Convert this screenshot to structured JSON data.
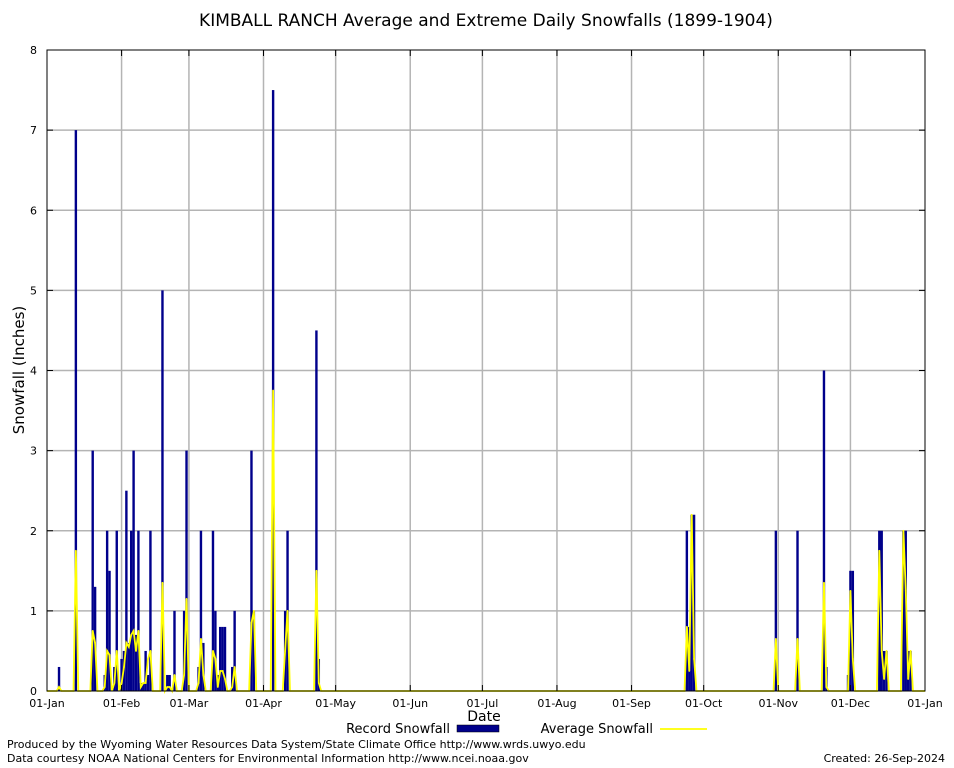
{
  "chart_data": {
    "type": "bar",
    "title": "KIMBALL RANCH Average and Extreme Daily Snowfalls (1899-1904)",
    "xlabel": "Date",
    "ylabel": "Snowfall (Inches)",
    "ylim": [
      0,
      8
    ],
    "yticks": [
      "0",
      "1",
      "2",
      "3",
      "4",
      "5",
      "6",
      "7",
      "8"
    ],
    "xlim_day_of_year": [
      1,
      366
    ],
    "xticks": [
      {
        "label": "01-Jan",
        "day": 1
      },
      {
        "label": "01-Feb",
        "day": 32
      },
      {
        "label": "01-Mar",
        "day": 60
      },
      {
        "label": "01-Apr",
        "day": 91
      },
      {
        "label": "01-May",
        "day": 121
      },
      {
        "label": "01-Jun",
        "day": 152
      },
      {
        "label": "01-Jul",
        "day": 182
      },
      {
        "label": "01-Aug",
        "day": 213
      },
      {
        "label": "01-Sep",
        "day": 244
      },
      {
        "label": "01-Oct",
        "day": 274
      },
      {
        "label": "01-Nov",
        "day": 305
      },
      {
        "label": "01-Dec",
        "day": 335
      },
      {
        "label": "01-Jan",
        "day": 366
      }
    ],
    "grid": true,
    "legend_position": "bottom",
    "legend": [
      {
        "label": "Record Snowfall",
        "color": "#00008b"
      },
      {
        "label": "Average Snowfall",
        "color": "#ffff00"
      }
    ],
    "series": [
      {
        "name": "Record Snowfall",
        "color": "#00008b",
        "points": [
          {
            "date": "06-Jan",
            "day": 6,
            "value": 0.3
          },
          {
            "date": "13-Jan",
            "day": 13,
            "value": 7.0
          },
          {
            "date": "20-Jan",
            "day": 20,
            "value": 3.0
          },
          {
            "date": "21-Jan",
            "day": 21,
            "value": 1.3
          },
          {
            "date": "25-Jan",
            "day": 25,
            "value": 0.2
          },
          {
            "date": "26-Jan",
            "day": 26,
            "value": 2.0
          },
          {
            "date": "27-Jan",
            "day": 27,
            "value": 1.5
          },
          {
            "date": "29-Jan",
            "day": 29,
            "value": 0.3
          },
          {
            "date": "30-Jan",
            "day": 30,
            "value": 2.0
          },
          {
            "date": "01-Feb",
            "day": 32,
            "value": 0.4
          },
          {
            "date": "02-Feb",
            "day": 33,
            "value": 0.5
          },
          {
            "date": "03-Feb",
            "day": 34,
            "value": 2.5
          },
          {
            "date": "04-Feb",
            "day": 35,
            "value": 0.6
          },
          {
            "date": "05-Feb",
            "day": 36,
            "value": 2.0
          },
          {
            "date": "06-Feb",
            "day": 37,
            "value": 3.0
          },
          {
            "date": "07-Feb",
            "day": 38,
            "value": 0.7
          },
          {
            "date": "08-Feb",
            "day": 39,
            "value": 2.0
          },
          {
            "date": "09-Feb",
            "day": 40,
            "value": 0.1
          },
          {
            "date": "10-Feb",
            "day": 41,
            "value": 0.1
          },
          {
            "date": "11-Feb",
            "day": 42,
            "value": 0.5
          },
          {
            "date": "12-Feb",
            "day": 43,
            "value": 0.2
          },
          {
            "date": "13-Feb",
            "day": 44,
            "value": 2.0
          },
          {
            "date": "18-Feb",
            "day": 49,
            "value": 5.0
          },
          {
            "date": "20-Feb",
            "day": 51,
            "value": 0.2
          },
          {
            "date": "21-Feb",
            "day": 52,
            "value": 0.2
          },
          {
            "date": "23-Feb",
            "day": 54,
            "value": 1.0
          },
          {
            "date": "27-Feb",
            "day": 58,
            "value": 1.0
          },
          {
            "date": "28-Feb",
            "day": 59,
            "value": 3.0
          },
          {
            "date": "05-Mar",
            "day": 64,
            "value": 0.3
          },
          {
            "date": "06-Mar",
            "day": 65,
            "value": 2.0
          },
          {
            "date": "07-Mar",
            "day": 66,
            "value": 0.6
          },
          {
            "date": "11-Mar",
            "day": 70,
            "value": 2.0
          },
          {
            "date": "12-Mar",
            "day": 71,
            "value": 1.0
          },
          {
            "date": "13-Mar",
            "day": 72,
            "value": 0.2
          },
          {
            "date": "14-Mar",
            "day": 73,
            "value": 0.8
          },
          {
            "date": "15-Mar",
            "day": 74,
            "value": 0.8
          },
          {
            "date": "16-Mar",
            "day": 75,
            "value": 0.8
          },
          {
            "date": "19-Mar",
            "day": 78,
            "value": 0.3
          },
          {
            "date": "20-Mar",
            "day": 79,
            "value": 1.0
          },
          {
            "date": "27-Mar",
            "day": 86,
            "value": 3.0
          },
          {
            "date": "28-Mar",
            "day": 87,
            "value": 1.0
          },
          {
            "date": "05-Apr",
            "day": 95,
            "value": 7.5
          },
          {
            "date": "10-Apr",
            "day": 100,
            "value": 1.0
          },
          {
            "date": "11-Apr",
            "day": 101,
            "value": 2.0
          },
          {
            "date": "23-Apr",
            "day": 113,
            "value": 4.5
          },
          {
            "date": "24-Apr",
            "day": 114,
            "value": 0.4
          },
          {
            "date": "24-Sep",
            "day": 267,
            "value": 2.0
          },
          {
            "date": "25-Sep",
            "day": 268,
            "value": 0.8
          },
          {
            "date": "26-Sep",
            "day": 269,
            "value": 2.2
          },
          {
            "date": "27-Sep",
            "day": 270,
            "value": 2.2
          },
          {
            "date": "31-Oct",
            "day": 304,
            "value": 2.0
          },
          {
            "date": "09-Nov",
            "day": 313,
            "value": 2.0
          },
          {
            "date": "20-Nov",
            "day": 324,
            "value": 4.0
          },
          {
            "date": "21-Nov",
            "day": 325,
            "value": 0.3
          },
          {
            "date": "30-Nov",
            "day": 334,
            "value": 0.2
          },
          {
            "date": "01-Dec",
            "day": 335,
            "value": 1.5
          },
          {
            "date": "02-Dec",
            "day": 336,
            "value": 1.5
          },
          {
            "date": "13-Dec",
            "day": 347,
            "value": 2.0
          },
          {
            "date": "14-Dec",
            "day": 348,
            "value": 2.0
          },
          {
            "date": "15-Dec",
            "day": 349,
            "value": 0.5
          },
          {
            "date": "16-Dec",
            "day": 350,
            "value": 0.5
          },
          {
            "date": "23-Dec",
            "day": 357,
            "value": 2.0
          },
          {
            "date": "24-Dec",
            "day": 358,
            "value": 2.0
          },
          {
            "date": "25-Dec",
            "day": 359,
            "value": 0.5
          },
          {
            "date": "26-Dec",
            "day": 360,
            "value": 0.5
          }
        ]
      },
      {
        "name": "Average Snowfall",
        "color": "#ffff00",
        "points": [
          {
            "date": "05-Jan",
            "day": 5,
            "value": 0.0
          },
          {
            "date": "06-Jan",
            "day": 6,
            "value": 0.05
          },
          {
            "date": "07-Jan",
            "day": 7,
            "value": 0.0
          },
          {
            "date": "12-Jan",
            "day": 12,
            "value": 0.0
          },
          {
            "date": "13-Jan",
            "day": 13,
            "value": 1.75
          },
          {
            "date": "14-Jan",
            "day": 14,
            "value": 0.0
          },
          {
            "date": "19-Jan",
            "day": 19,
            "value": 0.0
          },
          {
            "date": "20-Jan",
            "day": 20,
            "value": 0.75
          },
          {
            "date": "21-Jan",
            "day": 21,
            "value": 0.6
          },
          {
            "date": "22-Jan",
            "day": 22,
            "value": 0.0
          },
          {
            "date": "24-Jan",
            "day": 24,
            "value": 0.0
          },
          {
            "date": "25-Jan",
            "day": 25,
            "value": 0.05
          },
          {
            "date": "26-Jan",
            "day": 26,
            "value": 0.5
          },
          {
            "date": "27-Jan",
            "day": 27,
            "value": 0.45
          },
          {
            "date": "28-Jan",
            "day": 28,
            "value": 0.0
          },
          {
            "date": "29-Jan",
            "day": 29,
            "value": 0.1
          },
          {
            "date": "30-Jan",
            "day": 30,
            "value": 0.5
          },
          {
            "date": "31-Jan",
            "day": 31,
            "value": 0.0
          },
          {
            "date": "01-Feb",
            "day": 32,
            "value": 0.1
          },
          {
            "date": "02-Feb",
            "day": 33,
            "value": 0.3
          },
          {
            "date": "03-Feb",
            "day": 34,
            "value": 0.6
          },
          {
            "date": "04-Feb",
            "day": 35,
            "value": 0.55
          },
          {
            "date": "05-Feb",
            "day": 36,
            "value": 0.7
          },
          {
            "date": "06-Feb",
            "day": 37,
            "value": 0.75
          },
          {
            "date": "07-Feb",
            "day": 38,
            "value": 0.5
          },
          {
            "date": "08-Feb",
            "day": 39,
            "value": 0.75
          },
          {
            "date": "09-Feb",
            "day": 40,
            "value": 0.05
          },
          {
            "date": "10-Feb",
            "day": 41,
            "value": 0.1
          },
          {
            "date": "11-Feb",
            "day": 42,
            "value": 0.1
          },
          {
            "date": "12-Feb",
            "day": 43,
            "value": 0.4
          },
          {
            "date": "13-Feb",
            "day": 44,
            "value": 0.5
          },
          {
            "date": "14-Feb",
            "day": 45,
            "value": 0.0
          },
          {
            "date": "17-Feb",
            "day": 48,
            "value": 0.0
          },
          {
            "date": "18-Feb",
            "day": 49,
            "value": 1.35
          },
          {
            "date": "19-Feb",
            "day": 50,
            "value": 0.0
          },
          {
            "date": "20-Feb",
            "day": 51,
            "value": 0.05
          },
          {
            "date": "21-Feb",
            "day": 52,
            "value": 0.05
          },
          {
            "date": "22-Feb",
            "day": 53,
            "value": 0.0
          },
          {
            "date": "23-Feb",
            "day": 54,
            "value": 0.2
          },
          {
            "date": "24-Feb",
            "day": 55,
            "value": 0.0
          },
          {
            "date": "26-Feb",
            "day": 57,
            "value": 0.0
          },
          {
            "date": "27-Feb",
            "day": 58,
            "value": 0.2
          },
          {
            "date": "28-Feb",
            "day": 59,
            "value": 1.15
          },
          {
            "date": "01-Mar",
            "day": 60,
            "value": 0.0
          },
          {
            "date": "04-Mar",
            "day": 63,
            "value": 0.0
          },
          {
            "date": "05-Mar",
            "day": 64,
            "value": 0.1
          },
          {
            "date": "06-Mar",
            "day": 65,
            "value": 0.65
          },
          {
            "date": "07-Mar",
            "day": 66,
            "value": 0.2
          },
          {
            "date": "08-Mar",
            "day": 67,
            "value": 0.0
          },
          {
            "date": "10-Mar",
            "day": 69,
            "value": 0.0
          },
          {
            "date": "11-Mar",
            "day": 70,
            "value": 0.5
          },
          {
            "date": "12-Mar",
            "day": 71,
            "value": 0.4
          },
          {
            "date": "13-Mar",
            "day": 72,
            "value": 0.05
          },
          {
            "date": "14-Mar",
            "day": 73,
            "value": 0.25
          },
          {
            "date": "15-Mar",
            "day": 74,
            "value": 0.25
          },
          {
            "date": "16-Mar",
            "day": 75,
            "value": 0.15
          },
          {
            "date": "17-Mar",
            "day": 76,
            "value": 0.0
          },
          {
            "date": "18-Mar",
            "day": 77,
            "value": 0.0
          },
          {
            "date": "19-Mar",
            "day": 78,
            "value": 0.05
          },
          {
            "date": "20-Mar",
            "day": 79,
            "value": 0.3
          },
          {
            "date": "21-Mar",
            "day": 80,
            "value": 0.0
          },
          {
            "date": "26-Mar",
            "day": 85,
            "value": 0.0
          },
          {
            "date": "27-Mar",
            "day": 86,
            "value": 0.85
          },
          {
            "date": "28-Mar",
            "day": 87,
            "value": 1.0
          },
          {
            "date": "29-Mar",
            "day": 88,
            "value": 0.0
          },
          {
            "date": "04-Apr",
            "day": 94,
            "value": 0.0
          },
          {
            "date": "05-Apr",
            "day": 95,
            "value": 3.75
          },
          {
            "date": "06-Apr",
            "day": 96,
            "value": 0.0
          },
          {
            "date": "09-Apr",
            "day": 99,
            "value": 0.0
          },
          {
            "date": "10-Apr",
            "day": 100,
            "value": 0.5
          },
          {
            "date": "11-Apr",
            "day": 101,
            "value": 1.0
          },
          {
            "date": "12-Apr",
            "day": 102,
            "value": 0.0
          },
          {
            "date": "22-Apr",
            "day": 112,
            "value": 0.0
          },
          {
            "date": "23-Apr",
            "day": 113,
            "value": 1.5
          },
          {
            "date": "24-Apr",
            "day": 114,
            "value": 0.1
          },
          {
            "date": "25-Apr",
            "day": 115,
            "value": 0.0
          },
          {
            "date": "23-Sep",
            "day": 266,
            "value": 0.0
          },
          {
            "date": "24-Sep",
            "day": 267,
            "value": 0.8
          },
          {
            "date": "25-Sep",
            "day": 268,
            "value": 0.25
          },
          {
            "date": "26-Sep",
            "day": 269,
            "value": 2.2
          },
          {
            "date": "27-Sep",
            "day": 270,
            "value": 0.4
          },
          {
            "date": "28-Sep",
            "day": 271,
            "value": 0.0
          },
          {
            "date": "30-Oct",
            "day": 303,
            "value": 0.0
          },
          {
            "date": "31-Oct",
            "day": 304,
            "value": 0.65
          },
          {
            "date": "01-Nov",
            "day": 305,
            "value": 0.0
          },
          {
            "date": "08-Nov",
            "day": 312,
            "value": 0.0
          },
          {
            "date": "09-Nov",
            "day": 313,
            "value": 0.65
          },
          {
            "date": "10-Nov",
            "day": 314,
            "value": 0.0
          },
          {
            "date": "19-Nov",
            "day": 323,
            "value": 0.0
          },
          {
            "date": "20-Nov",
            "day": 324,
            "value": 1.35
          },
          {
            "date": "21-Nov",
            "day": 325,
            "value": 0.05
          },
          {
            "date": "22-Nov",
            "day": 326,
            "value": 0.0
          },
          {
            "date": "30-Nov",
            "day": 334,
            "value": 0.0
          },
          {
            "date": "01-Dec",
            "day": 335,
            "value": 1.25
          },
          {
            "date": "02-Dec",
            "day": 336,
            "value": 0.4
          },
          {
            "date": "03-Dec",
            "day": 337,
            "value": 0.0
          },
          {
            "date": "12-Dec",
            "day": 346,
            "value": 0.0
          },
          {
            "date": "13-Dec",
            "day": 347,
            "value": 1.75
          },
          {
            "date": "14-Dec",
            "day": 348,
            "value": 0.5
          },
          {
            "date": "15-Dec",
            "day": 349,
            "value": 0.15
          },
          {
            "date": "16-Dec",
            "day": 350,
            "value": 0.5
          },
          {
            "date": "17-Dec",
            "day": 351,
            "value": 0.0
          },
          {
            "date": "22-Dec",
            "day": 356,
            "value": 0.0
          },
          {
            "date": "23-Dec",
            "day": 357,
            "value": 2.0
          },
          {
            "date": "24-Dec",
            "day": 358,
            "value": 1.25
          },
          {
            "date": "25-Dec",
            "day": 359,
            "value": 0.15
          },
          {
            "date": "26-Dec",
            "day": 360,
            "value": 0.5
          },
          {
            "date": "27-Dec",
            "day": 361,
            "value": 0.0
          }
        ]
      }
    ]
  },
  "footer": {
    "produced_by": "Produced by the Wyoming Water Resources Data System/State Climate Office http://www.wrds.uwyo.edu",
    "data_courtesy": "Data courtesy NOAA National Centers for Environmental Information http://www.ncei.noaa.gov",
    "created": "Created:  26-Sep-2024"
  }
}
